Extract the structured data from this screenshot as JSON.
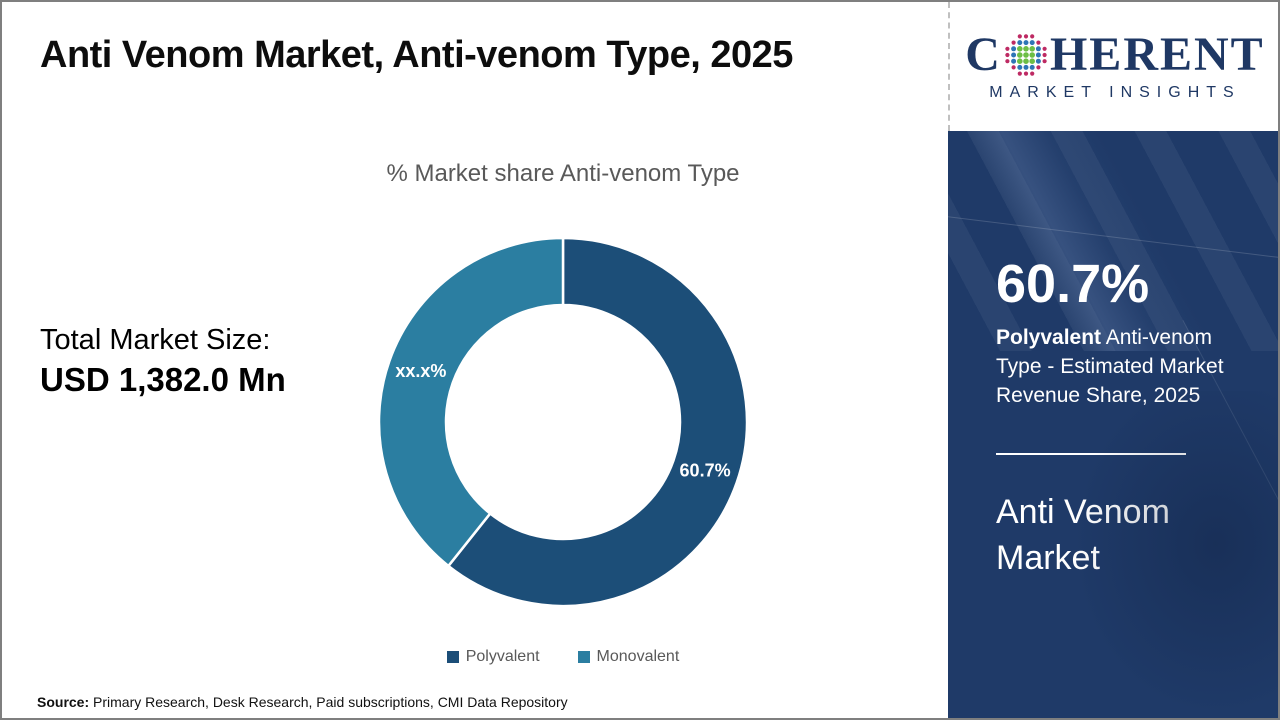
{
  "page": {
    "title": "Anti Venom Market, Anti-venom Type, 2025",
    "border_color": "#7f7f7f"
  },
  "logo": {
    "name_prefix": "C",
    "name_suffix": "HERENT",
    "subtitle": "MARKET INSIGHTS",
    "text_color": "#1f3864",
    "globe_icon": "dot-globe-icon",
    "globe_colors": {
      "inner": "#6cbe45",
      "middle": "#2e75b6",
      "outer": "#be2a63"
    }
  },
  "stats": {
    "total_label": "Total Market Size:",
    "total_value": "USD 1,382.0 Mn"
  },
  "chart_data": {
    "type": "pie",
    "donut": true,
    "title": "% Market share Anti-venom Type",
    "start_angle_deg": 0,
    "direction": "clockwise",
    "slices": [
      {
        "name": "Polyvalent",
        "value": 60.7,
        "label": "60.7%",
        "color": "#1c4e78"
      },
      {
        "name": "Monovalent",
        "value": 39.3,
        "label": "xx.x%",
        "color": "#2b7ea1"
      }
    ],
    "legend_position": "bottom",
    "legend_text_color": "#595959",
    "slice_label_color": "#ffffff"
  },
  "sidebar": {
    "bg_color": "#1f3a68",
    "stat_value": "60.7%",
    "desc_bold": "Polyvalent",
    "desc_rest": " Anti-venom Type - Estimated Market Revenue Share, 2025",
    "market_name": "Anti Venom Market"
  },
  "footer": {
    "source_label": "Source:",
    "source_text": " Primary Research, Desk Research, Paid subscriptions, CMI Data Repository"
  }
}
